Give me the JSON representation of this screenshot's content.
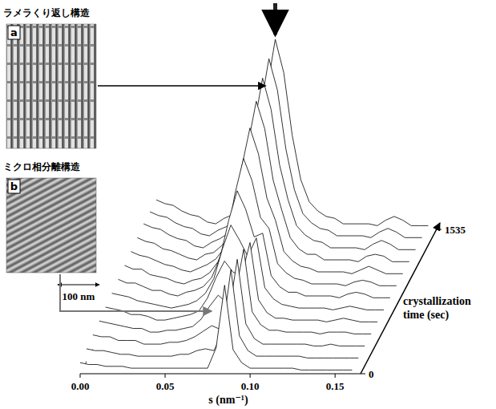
{
  "panels": [
    {
      "letter": "a",
      "title": "ラメラくり返し構造"
    },
    {
      "letter": "b",
      "title": "ミクロ相分離構造"
    }
  ],
  "scale_bar": "100 nm",
  "chart_data": {
    "type": "waterfall",
    "x_label": "s (nm⁻¹)",
    "time_label": "crystallization time (sec)",
    "xlim": [
      0,
      0.165
    ],
    "xticks": [
      {
        "value": 0,
        "label": "0.00"
      },
      {
        "value": 0.05,
        "label": "0.05"
      },
      {
        "value": 0.1,
        "label": "0.10"
      },
      {
        "value": 0.15,
        "label": "0.15"
      }
    ],
    "ylim": [
      0,
      110
    ],
    "time_lim": [
      0,
      1535
    ],
    "time_ticks": [
      0,
      1535
    ],
    "tick_labels": "x",
    "color": "#000000",
    "x": [
      0,
      0.005,
      0.01,
      0.015,
      0.02,
      0.025,
      0.03,
      0.035,
      0.04,
      0.045,
      0.05,
      0.055,
      0.06,
      0.065,
      0.07,
      0.075,
      0.08,
      0.085,
      0.09,
      0.095,
      0.1,
      0.105,
      0.11,
      0.115,
      0.12,
      0.125,
      0.13,
      0.135,
      0.14,
      0.145,
      0.15,
      0.155,
      0.16
    ],
    "series": [
      {
        "time": 0,
        "values": [
          6,
          5,
          5,
          4,
          4,
          4,
          3,
          3,
          3,
          3,
          3,
          3,
          3,
          3,
          3,
          3,
          14,
          48,
          13,
          6,
          3,
          3,
          3,
          3,
          3,
          3,
          2,
          2,
          2,
          2,
          2,
          2,
          2
        ]
      },
      {
        "time": 128,
        "values": [
          7,
          6,
          6,
          5,
          4,
          4,
          3,
          3,
          3,
          3,
          3,
          4,
          4,
          6,
          7,
          6,
          16,
          50,
          14,
          6,
          3,
          3,
          3,
          3,
          3,
          3,
          2,
          2,
          2,
          2,
          2,
          2,
          2
        ]
      },
      {
        "time": 256,
        "values": [
          8,
          7,
          7,
          5,
          5,
          5,
          3,
          3,
          3,
          4,
          4,
          5,
          7,
          10,
          13,
          11,
          19,
          49,
          14,
          6,
          3,
          3,
          3,
          3,
          3,
          3,
          2,
          2,
          3,
          2,
          2,
          2,
          2
        ]
      },
      {
        "time": 384,
        "values": [
          9,
          8,
          7,
          6,
          5,
          5,
          3,
          3,
          4,
          4,
          5,
          6,
          10,
          17,
          23,
          19,
          23,
          48,
          14,
          7,
          4,
          4,
          3,
          3,
          3,
          3,
          2,
          3,
          3,
          3,
          2,
          2,
          2
        ]
      },
      {
        "time": 512,
        "values": [
          10,
          9,
          8,
          6,
          6,
          5,
          3,
          3,
          4,
          5,
          6,
          8,
          15,
          26,
          35,
          29,
          27,
          45,
          14,
          7,
          4,
          4,
          3,
          3,
          3,
          3,
          2,
          3,
          4,
          3,
          2,
          2,
          2
        ]
      },
      {
        "time": 640,
        "values": [
          11,
          10,
          9,
          7,
          6,
          5,
          4,
          3,
          4,
          5,
          7,
          11,
          19,
          35,
          48,
          40,
          31,
          41,
          14,
          8,
          5,
          4,
          3,
          3,
          3,
          3,
          2,
          3,
          4,
          3,
          2,
          2,
          2
        ]
      },
      {
        "time": 768,
        "values": [
          12,
          10,
          10,
          8,
          6,
          6,
          4,
          3,
          5,
          6,
          8,
          13,
          24,
          44,
          60,
          50,
          35,
          37,
          14,
          8,
          5,
          5,
          3,
          3,
          3,
          3,
          2,
          4,
          5,
          4,
          2,
          2,
          2
        ]
      },
      {
        "time": 896,
        "values": [
          13,
          11,
          11,
          8,
          7,
          6,
          4,
          3,
          5,
          6,
          9,
          15,
          27,
          52,
          71,
          59,
          39,
          33,
          14,
          9,
          6,
          5,
          3,
          3,
          3,
          3,
          2,
          4,
          5,
          4,
          2,
          2,
          2
        ]
      },
      {
        "time": 1024,
        "values": [
          14,
          12,
          11,
          9,
          7,
          6,
          4,
          3,
          5,
          7,
          10,
          16,
          31,
          59,
          81,
          67,
          43,
          31,
          14,
          9,
          6,
          5,
          3,
          3,
          3,
          3,
          2,
          4,
          6,
          4,
          2,
          2,
          2
        ]
      },
      {
        "time": 1152,
        "values": [
          15,
          13,
          12,
          9,
          8,
          6,
          4,
          3,
          6,
          7,
          11,
          18,
          34,
          65,
          89,
          74,
          46,
          30,
          15,
          9,
          6,
          6,
          3,
          3,
          3,
          3,
          2,
          5,
          6,
          5,
          2,
          2,
          2
        ]
      },
      {
        "time": 1280,
        "values": [
          16,
          14,
          13,
          10,
          8,
          7,
          4,
          3,
          6,
          8,
          11,
          19,
          36,
          69,
          95,
          78,
          48,
          29,
          15,
          10,
          7,
          6,
          3,
          3,
          3,
          3,
          2,
          5,
          7,
          5,
          2,
          2,
          2
        ]
      },
      {
        "time": 1408,
        "values": [
          16,
          14,
          13,
          10,
          8,
          7,
          4,
          3,
          6,
          8,
          12,
          19,
          38,
          72,
          99,
          82,
          50,
          28,
          15,
          10,
          7,
          6,
          3,
          3,
          3,
          3,
          2,
          5,
          7,
          5,
          2,
          2,
          2
        ]
      },
      {
        "time": 1535,
        "values": [
          16,
          14,
          13,
          10,
          8,
          7,
          4,
          3,
          6,
          8,
          12,
          20,
          39,
          75,
          103,
          85,
          51,
          27,
          15,
          10,
          7,
          6,
          3,
          3,
          3,
          3,
          2,
          5,
          7,
          5,
          2,
          2,
          2
        ]
      }
    ]
  }
}
